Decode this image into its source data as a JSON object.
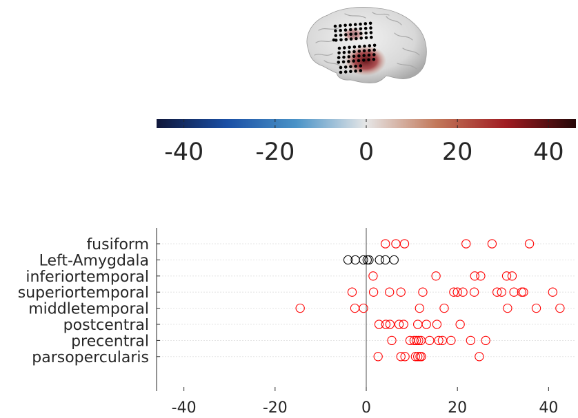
{
  "colorbar": {
    "ticks": [
      -40,
      -20,
      0,
      20,
      40
    ],
    "range": [
      -46,
      46
    ],
    "colormap_stops": [
      "#10173a",
      "#1a4fa5",
      "#4a93c7",
      "#e6e6e6",
      "#c2785a",
      "#a01c22",
      "#250808"
    ]
  },
  "brain_figure": {
    "icon": "brain-surface-with-electrode-grids",
    "surface_color": "#dedede",
    "electrode_color": "#000000",
    "activation_color": "#8b1620"
  },
  "chart_data": {
    "type": "scatter",
    "title": "",
    "xlabel": "",
    "ylabel": "",
    "xlim": [
      -46,
      46
    ],
    "xticks": [
      -40,
      -20,
      0,
      20,
      40
    ],
    "grid": "horizontal dotted",
    "zero_line": true,
    "marker": "open-circle",
    "categories": [
      "fusiform",
      "Left-Amygdala",
      "inferiortemporal",
      "superiortemporal",
      "middletemporal",
      "postcentral",
      "precentral",
      "parsopercularis"
    ],
    "series": [
      {
        "category": "fusiform",
        "color": "#ff0000",
        "x": [
          4.2,
          6.5,
          8.4,
          21.9,
          27.6,
          35.8
        ]
      },
      {
        "category": "Left-Amygdala",
        "color": "#000000",
        "x": [
          -4.0,
          -2.4,
          -0.6,
          0.2,
          0.6,
          2.9,
          4.2,
          6.1
        ]
      },
      {
        "category": "inferiortemporal",
        "color": "#ff0000",
        "x": [
          1.5,
          15.3,
          23.8,
          25.1,
          30.8,
          32.0
        ]
      },
      {
        "category": "superiortemporal",
        "color": "#ff0000",
        "x": [
          -3.1,
          1.6,
          5.1,
          7.6,
          12.4,
          19.2,
          20.0,
          21.2,
          23.7,
          28.7,
          29.7,
          32.4,
          34.1,
          34.5,
          40.9
        ]
      },
      {
        "category": "middletemporal",
        "color": "#ff0000",
        "x": [
          -14.5,
          -2.5,
          -0.6,
          11.7,
          17.1,
          31.0,
          37.3,
          42.5
        ]
      },
      {
        "category": "postcentral",
        "color": "#ff0000",
        "x": [
          2.8,
          4.3,
          5.2,
          7.2,
          8.2,
          11.3,
          13.2,
          15.5,
          20.6
        ]
      },
      {
        "category": "precentral",
        "color": "#ff0000",
        "x": [
          5.6,
          9.6,
          10.5,
          11.0,
          11.5,
          12.0,
          13.9,
          15.9,
          16.7,
          18.6,
          22.9,
          26.2
        ]
      },
      {
        "category": "parsopercularis",
        "color": "#ff0000",
        "x": [
          2.6,
          7.6,
          8.5,
          10.8,
          11.3,
          11.8,
          12.1,
          24.8
        ]
      }
    ]
  }
}
